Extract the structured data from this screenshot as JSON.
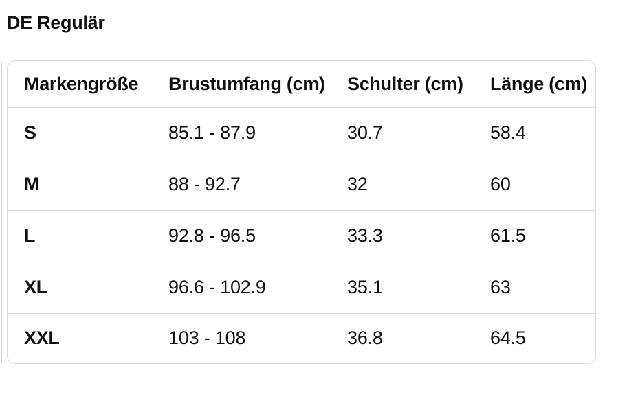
{
  "page": {
    "title": "DE Regulär"
  },
  "size_chart": {
    "columns": [
      "Markengröße",
      "Brustumfang (cm)",
      "Schulter (cm)",
      "Länge (cm)"
    ],
    "rows": [
      [
        "S",
        "85.1 - 87.9",
        "30.7",
        "58.4"
      ],
      [
        "M",
        "88 - 92.7",
        "32",
        "60"
      ],
      [
        "L",
        "92.8 - 96.5",
        "33.3",
        "61.5"
      ],
      [
        "XL",
        "96.6 - 102.9",
        "35.1",
        "63"
      ],
      [
        "XXL",
        "103 - 108",
        "36.8",
        "64.5"
      ]
    ]
  },
  "colors": {
    "text": "#0f1111",
    "card_border": "#d5d9d9",
    "row_separator": "#d9dcdc",
    "background": "#ffffff"
  }
}
